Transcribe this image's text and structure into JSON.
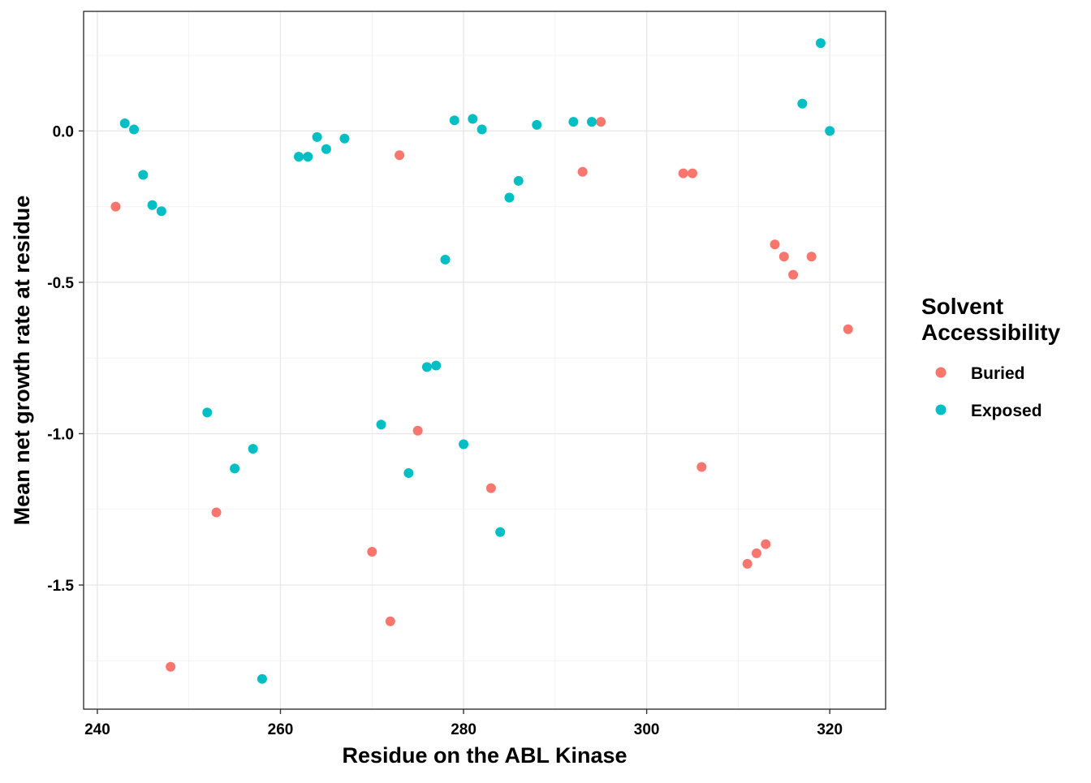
{
  "chart_data": {
    "type": "scatter",
    "xlabel": "Residue on the ABL Kinase",
    "ylabel": "Mean net growth rate at residue",
    "xlim": [
      238.5,
      326.1
    ],
    "ylim": [
      -1.91,
      0.395
    ],
    "x_ticks": [
      240,
      260,
      280,
      300,
      320
    ],
    "y_ticks": [
      0.0,
      -0.5,
      -1.0,
      -1.5
    ],
    "y_tick_labels": [
      "0.0",
      "-0.5",
      "-1.0",
      "-1.5"
    ],
    "grid": true,
    "legend": {
      "title_lines": [
        "Solvent",
        "Accessibility"
      ],
      "position": "right"
    },
    "series": [
      {
        "name": "Buried",
        "color": "#F8766D",
        "points": [
          [
            242,
            -0.25
          ],
          [
            248,
            -1.77
          ],
          [
            253,
            -1.26
          ],
          [
            270,
            -1.39
          ],
          [
            272,
            -1.62
          ],
          [
            273,
            -0.08
          ],
          [
            275,
            -0.99
          ],
          [
            283,
            -1.18
          ],
          [
            293,
            -0.135
          ],
          [
            295,
            0.03
          ],
          [
            304,
            -0.14
          ],
          [
            305,
            -0.14
          ],
          [
            306,
            -1.11
          ],
          [
            311,
            -1.43
          ],
          [
            312,
            -1.395
          ],
          [
            313,
            -1.365
          ],
          [
            314,
            -0.375
          ],
          [
            315,
            -0.415
          ],
          [
            316,
            -0.475
          ],
          [
            318,
            -0.415
          ],
          [
            322,
            -0.655
          ]
        ]
      },
      {
        "name": "Exposed",
        "color": "#00BFC4",
        "points": [
          [
            243,
            0.025
          ],
          [
            244,
            0.005
          ],
          [
            245,
            -0.145
          ],
          [
            246,
            -0.245
          ],
          [
            247,
            -0.265
          ],
          [
            252,
            -0.93
          ],
          [
            255,
            -1.115
          ],
          [
            257,
            -1.05
          ],
          [
            258,
            -1.81
          ],
          [
            262,
            -0.085
          ],
          [
            263,
            -0.085
          ],
          [
            264,
            -0.02
          ],
          [
            265,
            -0.06
          ],
          [
            267,
            -0.025
          ],
          [
            271,
            -0.97
          ],
          [
            274,
            -1.13
          ],
          [
            276,
            -0.78
          ],
          [
            277,
            -0.775
          ],
          [
            278,
            -0.425
          ],
          [
            279,
            0.035
          ],
          [
            280,
            -1.035
          ],
          [
            281,
            0.04
          ],
          [
            282,
            0.005
          ],
          [
            284,
            -1.325
          ],
          [
            285,
            -0.22
          ],
          [
            286,
            -0.165
          ],
          [
            288,
            0.02
          ],
          [
            292,
            0.03
          ],
          [
            294,
            0.03
          ],
          [
            317,
            0.09
          ],
          [
            319,
            0.29
          ],
          [
            320,
            0.0
          ]
        ]
      }
    ]
  }
}
